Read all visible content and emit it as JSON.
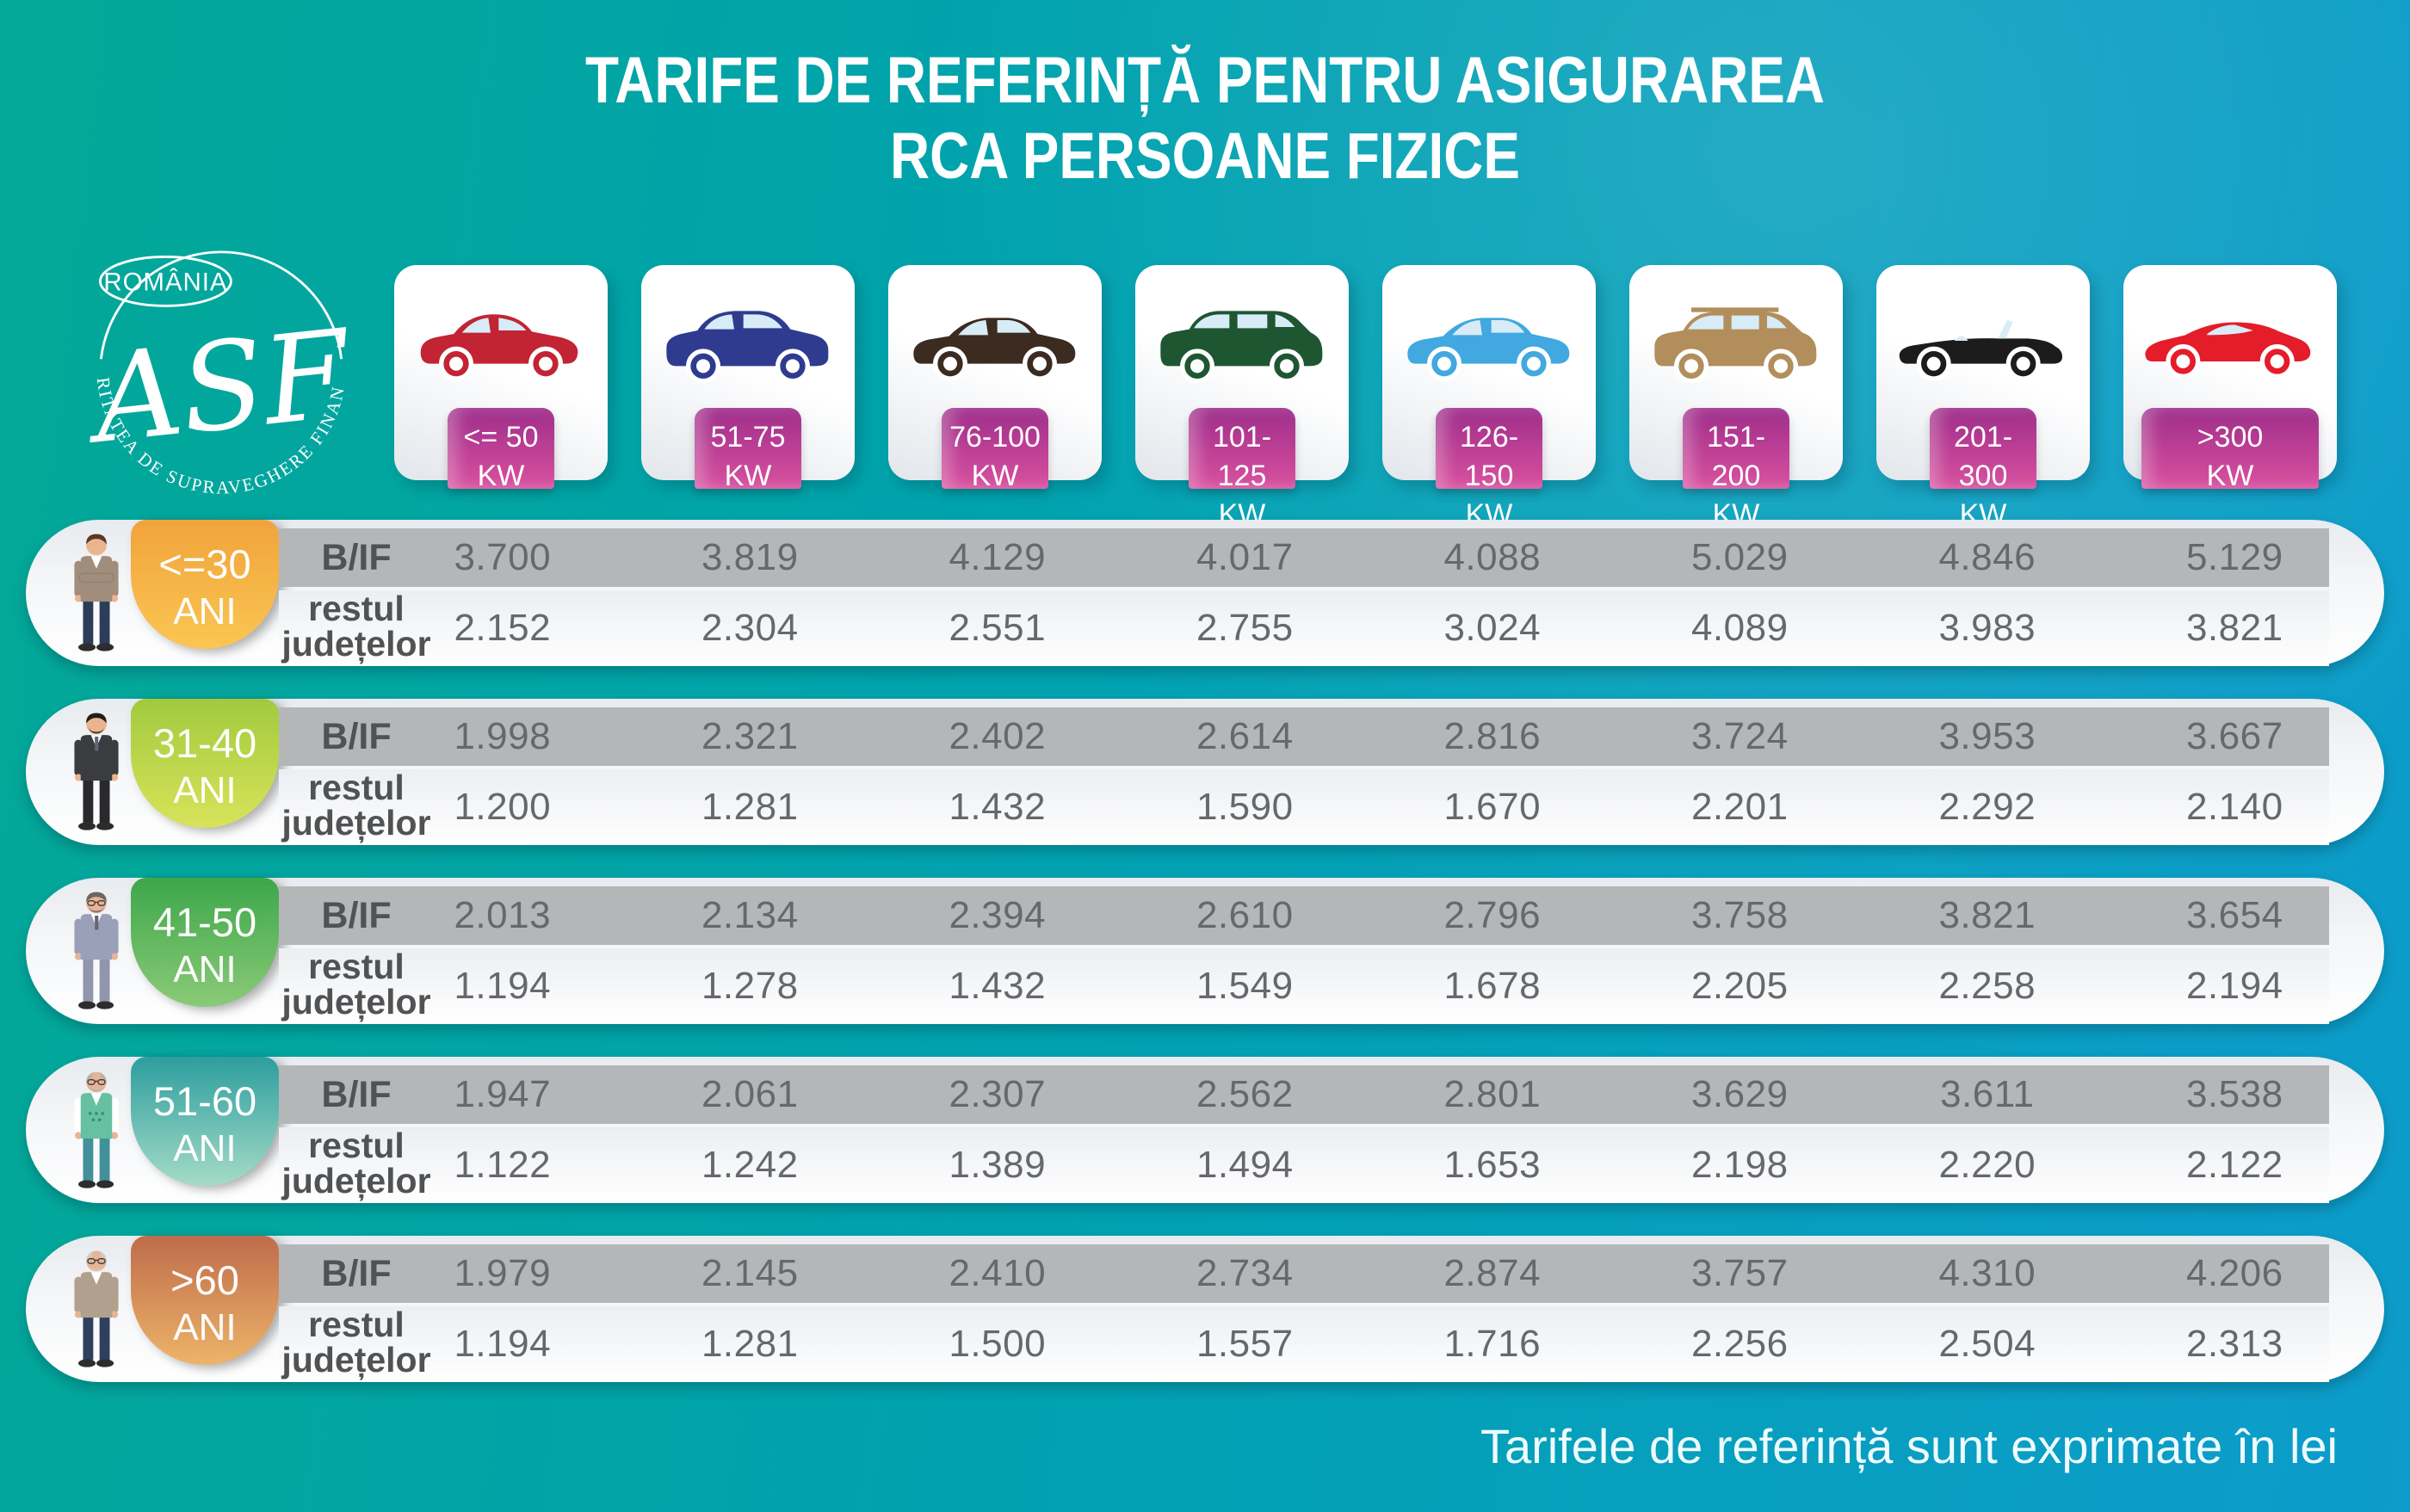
{
  "title": {
    "line1": "TARIFE DE REFERINȚĂ PENTRU ASIGURAREA",
    "line2": "RCA PERSOANE FIZICE"
  },
  "logo": {
    "country": "ROMÂNIA",
    "monogram": "ASF",
    "ring_text": "AUTORITATEA DE SUPRAVEGHERE FINANCIARĂ"
  },
  "footnote": "Tarifele de referință sunt exprimate în lei",
  "chart_data": {
    "type": "table",
    "title": "TARIFE DE REFERINȚĂ PENTRU ASIGURAREA RCA PERSOANE FIZICE",
    "unit_note": "Tarifele de referință sunt exprimate în lei",
    "currency": "lei",
    "columns": [
      {
        "kw": "<= 50",
        "unit": "KW",
        "vehicle": "hatchback",
        "color": "#c22433"
      },
      {
        "kw": "51-75",
        "unit": "KW",
        "vehicle": "suv",
        "color": "#2e3b8f"
      },
      {
        "kw": "76-100",
        "unit": "KW",
        "vehicle": "sedan",
        "color": "#3c2b20"
      },
      {
        "kw": "101-125",
        "unit": "KW",
        "vehicle": "minivan",
        "color": "#1e5632"
      },
      {
        "kw": "126-150",
        "unit": "KW",
        "vehicle": "sedan",
        "color": "#41a8e0"
      },
      {
        "kw": "151-200",
        "unit": "KW",
        "vehicle": "suv-rails",
        "color": "#b28e5c"
      },
      {
        "kw": "201-300",
        "unit": "KW",
        "vehicle": "convertible",
        "color": "#1c1c1c"
      },
      {
        "kw": ">300",
        "unit": "KW",
        "vehicle": "sports",
        "color": "#e51c29"
      }
    ],
    "region_labels": {
      "bif": "B/IF",
      "rest": [
        "restul",
        "județelor"
      ]
    },
    "rows": [
      {
        "age_line1": "<=30",
        "age_line2": "ANI",
        "badge": [
          "#f1a33b",
          "#fac653"
        ],
        "person": {
          "hair": "#5a3a26",
          "skin": "#eab58e",
          "top": "#a18d7c",
          "shirt": "#ffffff",
          "pants": "#2c3c59",
          "style": "crossed"
        },
        "bif": [
          "3.700",
          "3.819",
          "4.129",
          "4.017",
          "4.088",
          "5.029",
          "4.846",
          "5.129"
        ],
        "rest": [
          "2.152",
          "2.304",
          "2.551",
          "2.755",
          "3.024",
          "4.089",
          "3.983",
          "3.821"
        ]
      },
      {
        "age_line1": "31-40",
        "age_line2": "ANI",
        "badge": [
          "#a2ca3e",
          "#d8e35a"
        ],
        "person": {
          "hair": "#241d18",
          "skin": "#eab58e",
          "top": "#3b3c40",
          "shirt": "#ffffff",
          "pants": "#2a2a2e",
          "style": "suit"
        },
        "bif": [
          "1.998",
          "2.321",
          "2.402",
          "2.614",
          "2.816",
          "3.724",
          "3.953",
          "3.667"
        ],
        "rest": [
          "1.200",
          "1.281",
          "1.432",
          "1.590",
          "1.670",
          "2.201",
          "2.292",
          "2.140"
        ]
      },
      {
        "age_line1": "41-50",
        "age_line2": "ANI",
        "badge": [
          "#3da74a",
          "#8bca77"
        ],
        "person": {
          "hair": "#6e655e",
          "skin": "#e6b496",
          "top": "#9aa0b8",
          "shirt": "#ffffff",
          "pants": "#9096ac",
          "style": "suit-glasses"
        },
        "bif": [
          "2.013",
          "2.134",
          "2.394",
          "2.610",
          "2.796",
          "3.758",
          "3.821",
          "3.654"
        ],
        "rest": [
          "1.194",
          "1.278",
          "1.432",
          "1.549",
          "1.678",
          "2.205",
          "2.258",
          "2.194"
        ]
      },
      {
        "age_line1": "51-60",
        "age_line2": "ANI",
        "badge": [
          "#2d9e9e",
          "#a5dbc7"
        ],
        "person": {
          "hair": "#b9b2a9",
          "skin": "#e6b496",
          "top": "#66c0a1",
          "shirt": "#ffffff",
          "pants": "#41909a",
          "style": "vest-glasses"
        },
        "bif": [
          "1.947",
          "2.061",
          "2.307",
          "2.562",
          "2.801",
          "3.629",
          "3.611",
          "3.538"
        ],
        "rest": [
          "1.122",
          "1.242",
          "1.389",
          "1.494",
          "1.653",
          "2.198",
          "2.220",
          "2.122"
        ]
      },
      {
        "age_line1": ">60",
        "age_line2": "ANI",
        "badge": [
          "#bf6c4b",
          "#edb469"
        ],
        "person": {
          "hair": "#cfc9c1",
          "skin": "#e6b496",
          "top": "#b2a08e",
          "shirt": "#ffffff",
          "pants": "#2f405d",
          "style": "cardigan-glasses"
        },
        "bif": [
          "1.979",
          "2.145",
          "2.410",
          "2.734",
          "2.874",
          "3.757",
          "4.310",
          "4.206"
        ],
        "rest": [
          "1.194",
          "1.281",
          "1.500",
          "1.557",
          "1.716",
          "2.256",
          "2.504",
          "2.313"
        ]
      }
    ]
  }
}
